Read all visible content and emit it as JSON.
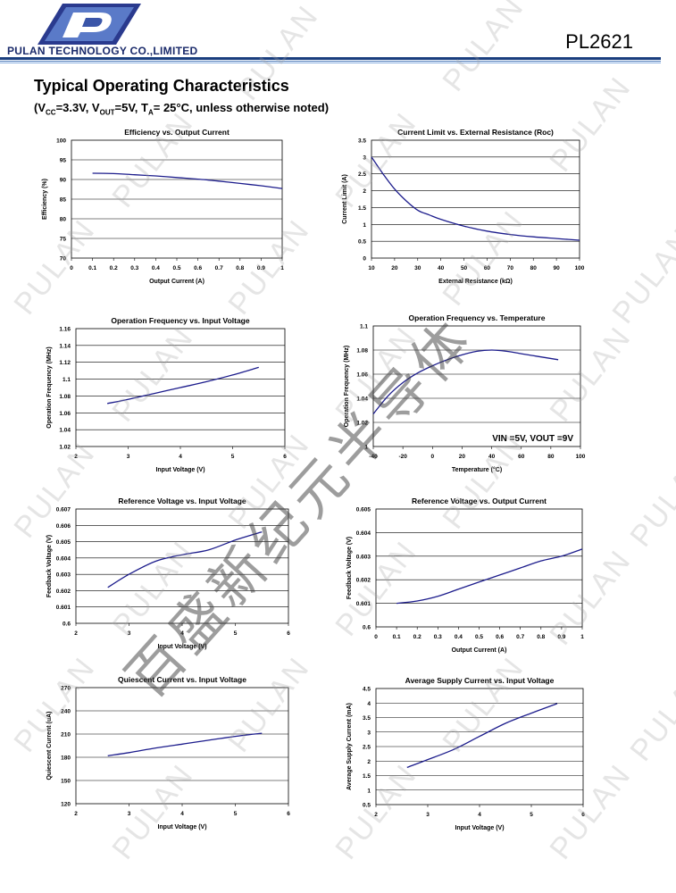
{
  "header": {
    "company": "PULAN TECHNOLOGY CO.,LIMITED",
    "part_number": "PL2621"
  },
  "section_title": "Typical Operating Characteristics",
  "conditions": "(VCC=3.3V, VOUT=5V, TA= 25°C, unless otherwise noted)",
  "watermark": {
    "text": "PULAN",
    "overlay": "百盛新纪元半导体"
  },
  "chart_data": [
    {
      "type": "line",
      "title": "Efficiency  vs. Output Current",
      "xlabel": "Output Current (A)",
      "ylabel": "Efficiency (%)",
      "xlim": [
        0,
        1
      ],
      "ylim": [
        70,
        100
      ],
      "xticks": [
        0,
        0.1,
        0.2,
        0.3,
        0.4,
        0.5,
        0.6,
        0.7,
        0.8,
        0.9,
        1
      ],
      "xtick_labels": [
        "0",
        "0.1",
        "0.2",
        "0.3",
        "0.4",
        "0.5",
        "0.6",
        "0.7",
        "0.8",
        "0.9",
        "1"
      ],
      "yticks": [
        70,
        75,
        80,
        85,
        90,
        95,
        100
      ],
      "ytick_labels": [
        "70",
        "75",
        "80",
        "85",
        "90",
        "95",
        "100"
      ],
      "x": [
        0.1,
        0.2,
        0.3,
        0.4,
        0.5,
        0.6,
        0.7,
        0.8,
        0.9,
        1.0
      ],
      "y": [
        91.6,
        91.5,
        91.2,
        90.9,
        90.5,
        90.1,
        89.6,
        89.0,
        88.4,
        87.7
      ],
      "grid": "horizontal"
    },
    {
      "type": "line",
      "title": "Current Limit  vs. External Resistance (Roc)",
      "xlabel": "External Resistance (kΩ)",
      "ylabel": "Current Limit (A)",
      "xlim": [
        10,
        100
      ],
      "ylim": [
        0,
        3.5
      ],
      "xticks": [
        10,
        20,
        30,
        40,
        50,
        60,
        70,
        80,
        90,
        100
      ],
      "xtick_labels": [
        "10",
        "20",
        "30",
        "40",
        "50",
        "60",
        "70",
        "80",
        "90",
        "100"
      ],
      "yticks": [
        0,
        0.5,
        1,
        1.5,
        2,
        2.5,
        3,
        3.5
      ],
      "ytick_labels": [
        "0",
        "0.5",
        "1",
        "1.5",
        "2",
        "2.5",
        "3",
        "3.5"
      ],
      "x": [
        10,
        15,
        20,
        25,
        30,
        35,
        40,
        50,
        60,
        70,
        80,
        90,
        100
      ],
      "y": [
        3.0,
        2.5,
        2.05,
        1.7,
        1.42,
        1.28,
        1.15,
        0.95,
        0.8,
        0.7,
        0.63,
        0.58,
        0.53
      ],
      "grid": "horizontal"
    },
    {
      "type": "line",
      "title": "Operation Frequency vs. Input Voltage",
      "xlabel": "Input Voltage (V)",
      "ylabel": "Operation Frequency (MHz)",
      "xlim": [
        2,
        6
      ],
      "ylim": [
        1.02,
        1.16
      ],
      "xticks": [
        2,
        3,
        4,
        5,
        6
      ],
      "xtick_labels": [
        "2",
        "3",
        "4",
        "5",
        "6"
      ],
      "yticks": [
        1.02,
        1.04,
        1.06,
        1.08,
        1.1,
        1.12,
        1.14,
        1.16
      ],
      "ytick_labels": [
        "1.02",
        "1.04",
        "1.06",
        "1.08",
        "1.1",
        "1.12",
        "1.14",
        "1.16"
      ],
      "x": [
        2.6,
        3.0,
        3.5,
        4.0,
        4.5,
        5.0,
        5.5
      ],
      "y": [
        1.071,
        1.076,
        1.083,
        1.09,
        1.097,
        1.105,
        1.114
      ],
      "grid": "horizontal"
    },
    {
      "type": "line",
      "title": "Operation Frequency  vs. Temperature",
      "xlabel": "Temperature (°C)",
      "ylabel": "Operation Frequency (MHz)",
      "xlim": [
        -40,
        100
      ],
      "ylim": [
        1.0,
        1.1
      ],
      "xticks": [
        -40,
        -20,
        0,
        20,
        40,
        60,
        80,
        100
      ],
      "xtick_labels": [
        "-40",
        "-20",
        "0",
        "20",
        "40",
        "60",
        "80",
        "100"
      ],
      "yticks": [
        1.0,
        1.02,
        1.04,
        1.06,
        1.08,
        1.1
      ],
      "ytick_labels": [
        "1",
        "1.02",
        "1.04",
        "1.06",
        "1.08",
        "1.1"
      ],
      "x": [
        -40,
        -30,
        -20,
        -10,
        0,
        10,
        20,
        30,
        40,
        50,
        60,
        70,
        85
      ],
      "y": [
        1.027,
        1.042,
        1.053,
        1.061,
        1.067,
        1.072,
        1.076,
        1.079,
        1.08,
        1.079,
        1.077,
        1.075,
        1.072
      ],
      "annotation": "VIN =5V, VOUT =9V",
      "grid": "horizontal"
    },
    {
      "type": "line",
      "title": "Reference Voltage  vs.  Input Voltage",
      "xlabel": "Input Voltage (V)",
      "ylabel": "Feedback Voltage (V)",
      "xlim": [
        2,
        6
      ],
      "ylim": [
        0.6,
        0.607
      ],
      "xticks": [
        2,
        3,
        4,
        5,
        6
      ],
      "xtick_labels": [
        "2",
        "3",
        "4",
        "5",
        "6"
      ],
      "yticks": [
        0.6,
        0.601,
        0.602,
        0.603,
        0.604,
        0.605,
        0.606,
        0.607
      ],
      "ytick_labels": [
        "0.6",
        "0.601",
        "0.602",
        "0.603",
        "0.604",
        "0.605",
        "0.606",
        "0.607"
      ],
      "x": [
        2.6,
        3.0,
        3.5,
        4.0,
        4.5,
        5.0,
        5.5
      ],
      "y": [
        0.6022,
        0.603,
        0.6038,
        0.6042,
        0.6045,
        0.6051,
        0.6056
      ],
      "grid": "horizontal"
    },
    {
      "type": "line",
      "title": "Reference Voltage  vs. Output Current",
      "xlabel": "Output Current (A)",
      "ylabel": "Feedback Voltage (V)",
      "xlim": [
        0,
        1
      ],
      "ylim": [
        0.6,
        0.605
      ],
      "xticks": [
        0,
        0.1,
        0.2,
        0.3,
        0.4,
        0.5,
        0.6,
        0.7,
        0.8,
        0.9,
        1
      ],
      "xtick_labels": [
        "0",
        "0.1",
        "0.2",
        "0.3",
        "0.4",
        "0.5",
        "0.6",
        "0.7",
        "0.8",
        "0.9",
        "1"
      ],
      "yticks": [
        0.6,
        0.601,
        0.602,
        0.603,
        0.604,
        0.605
      ],
      "ytick_labels": [
        "0.6",
        "0.601",
        "0.602",
        "0.603",
        "0.604",
        "0.605"
      ],
      "x": [
        0.1,
        0.2,
        0.3,
        0.4,
        0.5,
        0.6,
        0.7,
        0.8,
        0.9,
        1.0
      ],
      "y": [
        0.601,
        0.6011,
        0.6013,
        0.6016,
        0.6019,
        0.6022,
        0.6025,
        0.6028,
        0.603,
        0.6033
      ],
      "grid": "horizontal"
    },
    {
      "type": "line",
      "title": "Quiescent  Current  vs.  Input Voltage",
      "xlabel": "Input Voltage (V)",
      "ylabel": "Quiescent  Current (uA)",
      "xlim": [
        2,
        6
      ],
      "ylim": [
        120,
        270
      ],
      "xticks": [
        2,
        3,
        4,
        5,
        6
      ],
      "xtick_labels": [
        "2",
        "3",
        "4",
        "5",
        "6"
      ],
      "yticks": [
        120,
        150,
        180,
        210,
        240,
        270
      ],
      "ytick_labels": [
        "120",
        "150",
        "180",
        "210",
        "240",
        "270"
      ],
      "x": [
        2.6,
        3.0,
        3.5,
        4.0,
        4.5,
        5.0,
        5.5
      ],
      "y": [
        182,
        186,
        192,
        197,
        202,
        207,
        211
      ],
      "grid": "horizontal"
    },
    {
      "type": "line",
      "title": "Average Supply  Current  vs. Input  Voltage",
      "xlabel": "Input Voltage (V)",
      "ylabel": "Average Supply  Current (mA)",
      "xlim": [
        2,
        6
      ],
      "ylim": [
        0.5,
        4.5
      ],
      "xticks": [
        2,
        3,
        4,
        5,
        6
      ],
      "xtick_labels": [
        "2",
        "3",
        "4",
        "5",
        "6"
      ],
      "yticks": [
        0.5,
        1,
        1.5,
        2,
        2.5,
        3,
        3.5,
        4,
        4.5
      ],
      "ytick_labels": [
        "0.5",
        "1",
        "1.5",
        "2",
        "2.5",
        "3",
        "3.5",
        "4",
        "4.5"
      ],
      "x": [
        2.6,
        3.0,
        3.5,
        4.0,
        4.5,
        5.0,
        5.5
      ],
      "y": [
        1.78,
        2.05,
        2.4,
        2.85,
        3.3,
        3.65,
        3.98
      ],
      "grid": "horizontal"
    }
  ]
}
